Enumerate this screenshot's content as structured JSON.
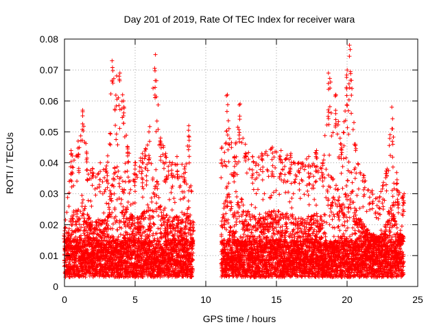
{
  "chart_data": {
    "type": "scatter",
    "title": "Day 201 of 2019, Rate Of TEC Index for receiver wara",
    "xlabel": "GPS time / hours",
    "ylabel": "ROTI / TECUs",
    "xlim": [
      0,
      25
    ],
    "ylim": [
      0,
      0.08
    ],
    "xticks": [
      0,
      5,
      10,
      15,
      20,
      25
    ],
    "xtick_labels": [
      "0",
      "5",
      "10",
      "15",
      "20",
      "25"
    ],
    "yticks": [
      0,
      0.01,
      0.02,
      0.03,
      0.04,
      0.05,
      0.06,
      0.07,
      0.08
    ],
    "ytick_labels": [
      "0",
      "0.01",
      "0.02",
      "0.03",
      "0.04",
      "0.05",
      "0.06",
      "0.07",
      "0.08"
    ],
    "grid": true,
    "marker": "+",
    "color": "#ff0000",
    "series": [
      {
        "name": "ROTI",
        "segments": [
          {
            "x_start": 0.0,
            "x_end": 9.1
          },
          {
            "x_start": 11.1,
            "x_end": 24.0
          }
        ],
        "baseline_range": [
          0.003,
          0.015
        ],
        "upper_envelope": [
          [
            0.0,
            0.018
          ],
          [
            0.5,
            0.044
          ],
          [
            1.0,
            0.047
          ],
          [
            1.3,
            0.057
          ],
          [
            1.6,
            0.043
          ],
          [
            2.0,
            0.038
          ],
          [
            2.5,
            0.04
          ],
          [
            3.0,
            0.039
          ],
          [
            3.4,
            0.073
          ],
          [
            3.9,
            0.069
          ],
          [
            4.2,
            0.06
          ],
          [
            4.5,
            0.045
          ],
          [
            5.0,
            0.04
          ],
          [
            5.5,
            0.043
          ],
          [
            6.0,
            0.05
          ],
          [
            6.4,
            0.075
          ],
          [
            6.8,
            0.048
          ],
          [
            7.2,
            0.043
          ],
          [
            7.6,
            0.04
          ],
          [
            8.0,
            0.042
          ],
          [
            8.5,
            0.038
          ],
          [
            8.8,
            0.052
          ],
          [
            9.1,
            0.021
          ],
          [
            11.1,
            0.045
          ],
          [
            11.5,
            0.062
          ],
          [
            12.0,
            0.042
          ],
          [
            12.4,
            0.059
          ],
          [
            12.8,
            0.046
          ],
          [
            13.3,
            0.042
          ],
          [
            14.0,
            0.043
          ],
          [
            14.7,
            0.045
          ],
          [
            15.3,
            0.044
          ],
          [
            16.0,
            0.043
          ],
          [
            16.6,
            0.04
          ],
          [
            17.3,
            0.042
          ],
          [
            17.8,
            0.044
          ],
          [
            18.3,
            0.04
          ],
          [
            18.7,
            0.069
          ],
          [
            19.2,
            0.062
          ],
          [
            19.6,
            0.046
          ],
          [
            20.0,
            0.07
          ],
          [
            20.2,
            0.078
          ],
          [
            20.6,
            0.046
          ],
          [
            21.2,
            0.036
          ],
          [
            21.8,
            0.031
          ],
          [
            22.3,
            0.029
          ],
          [
            22.8,
            0.038
          ],
          [
            23.2,
            0.058
          ],
          [
            23.6,
            0.031
          ],
          [
            24.0,
            0.03
          ]
        ]
      }
    ]
  }
}
